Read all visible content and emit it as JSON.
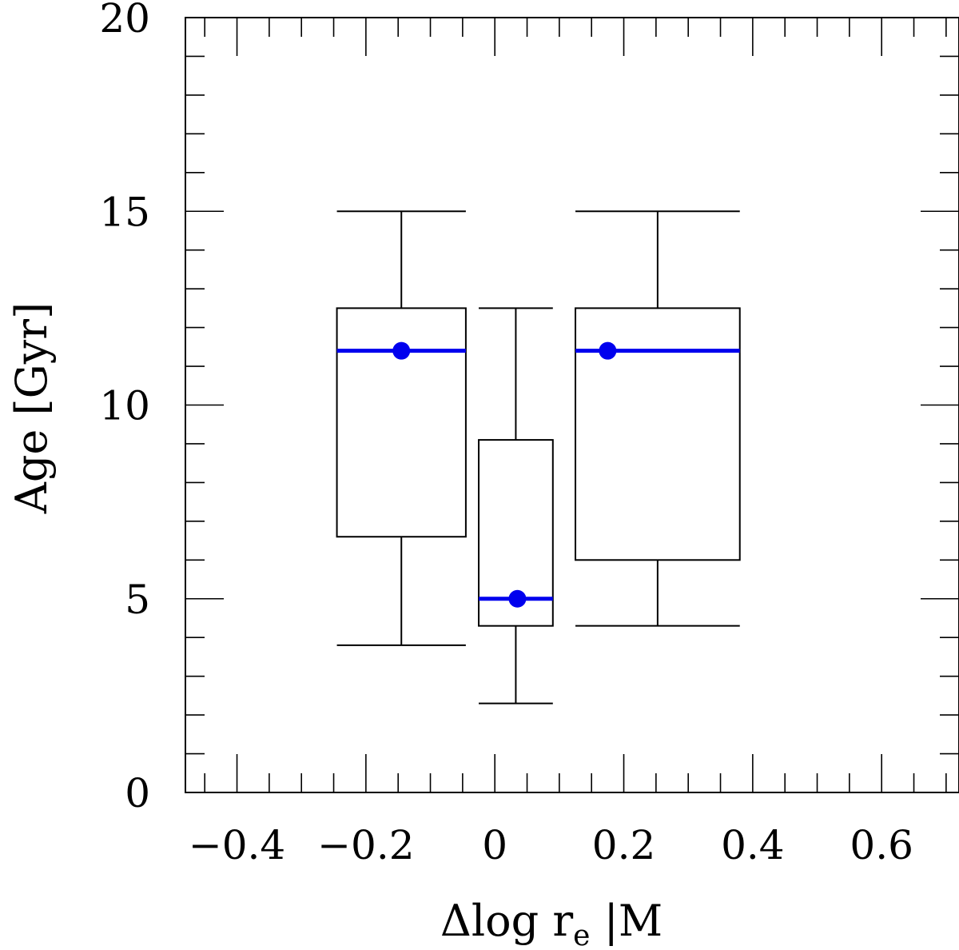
{
  "chart_data": {
    "type": "box",
    "xlabel": "Δlog r",
    "xlabel_subscript": "e",
    "xlabel_suffix": " |M",
    "ylabel": "Age [Gyr]",
    "xlim": [
      -0.48,
      0.72
    ],
    "ylim": [
      0,
      20
    ],
    "x_ticks": [
      -0.4,
      -0.2,
      0,
      0.2,
      0.4,
      0.6
    ],
    "x_tick_labels": [
      "−0.4",
      "−0.2",
      "0",
      "0.2",
      "0.4",
      "0.6"
    ],
    "y_ticks": [
      0,
      5,
      10,
      15,
      20
    ],
    "y_tick_labels": [
      "0",
      "5",
      "10",
      "15",
      "20"
    ],
    "median_color": "#0000ee",
    "boxes": [
      {
        "x_left": -0.245,
        "x_right": -0.045,
        "whisker_low": 3.8,
        "q1": 6.6,
        "median": 11.4,
        "q3": 12.5,
        "whisker_high": 15.0,
        "point_x": -0.145,
        "point_y": 11.4
      },
      {
        "x_left": -0.025,
        "x_right": 0.09,
        "whisker_low": 2.3,
        "q1": 4.3,
        "median": 5.0,
        "q3": 9.1,
        "whisker_high": 12.5,
        "point_x": 0.035,
        "point_y": 5.0
      },
      {
        "x_left": 0.125,
        "x_right": 0.38,
        "whisker_low": 4.3,
        "q1": 6.0,
        "median": 11.4,
        "q3": 12.5,
        "whisker_high": 15.0,
        "point_x": 0.175,
        "point_y": 11.4
      }
    ]
  }
}
